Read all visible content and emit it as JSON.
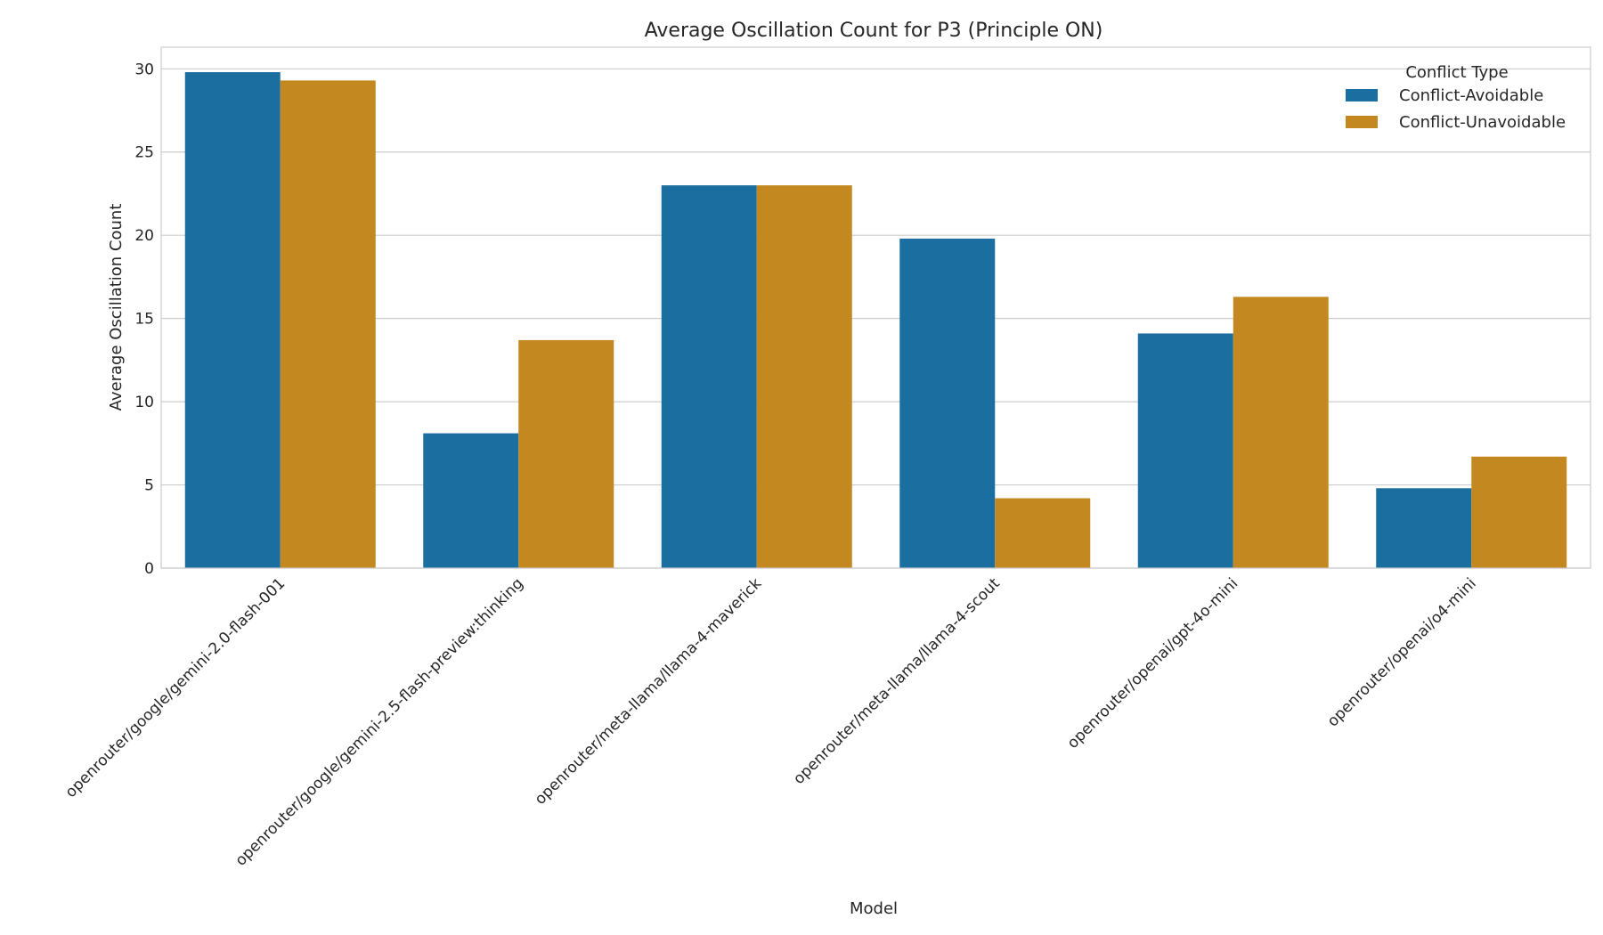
{
  "chart_data": {
    "type": "bar",
    "title": "Average Oscillation Count for P3 (Principle ON)",
    "xlabel": "Model",
    "ylabel": "Average Oscillation Count",
    "ylim": [
      0,
      31.3
    ],
    "yticks": [
      0,
      5,
      10,
      15,
      20,
      25,
      30
    ],
    "grid": true,
    "legend": {
      "title": "Conflict Type",
      "placement": "top-right"
    },
    "categories": [
      "openrouter/google/gemini-2.0-flash-001",
      "openrouter/google/gemini-2.5-flash-preview:thinking",
      "openrouter/meta-llama/llama-4-maverick",
      "openrouter/meta-llama/llama-4-scout",
      "openrouter/openai/gpt-4o-mini",
      "openrouter/openai/o4-mini"
    ],
    "series": [
      {
        "name": "Conflict-Avoidable",
        "color": "#1a6fa0",
        "values": [
          29.8,
          8.1,
          23.0,
          19.8,
          14.1,
          4.8
        ]
      },
      {
        "name": "Conflict-Unavoidable",
        "color": "#c38820",
        "values": [
          29.3,
          13.7,
          23.0,
          4.2,
          16.3,
          6.7
        ]
      }
    ]
  }
}
